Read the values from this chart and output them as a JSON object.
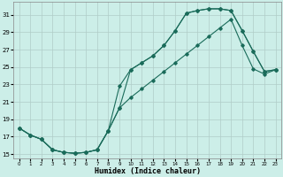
{
  "xlabel": "Humidex (Indice chaleur)",
  "bg_color": "#cceee8",
  "grid_color": "#b0ccc8",
  "line_color": "#1a6b5a",
  "xlim": [
    -0.5,
    23.5
  ],
  "ylim": [
    14.5,
    32.5
  ],
  "xticks": [
    0,
    1,
    2,
    3,
    4,
    5,
    6,
    7,
    8,
    9,
    10,
    11,
    12,
    13,
    14,
    15,
    16,
    17,
    18,
    19,
    20,
    21,
    22,
    23
  ],
  "yticks": [
    15,
    17,
    19,
    21,
    23,
    25,
    27,
    29,
    31
  ],
  "line1_x": [
    0,
    1,
    2,
    3,
    4,
    5,
    6,
    7,
    8,
    9,
    10,
    11,
    12,
    13,
    14,
    15,
    16,
    17,
    18,
    19,
    20,
    21,
    22,
    23
  ],
  "line1_y": [
    18.0,
    17.2,
    16.7,
    15.5,
    15.2,
    15.1,
    15.2,
    15.5,
    17.7,
    20.3,
    24.7,
    25.5,
    26.3,
    27.5,
    29.2,
    31.2,
    31.5,
    31.7,
    31.7,
    31.5,
    29.2,
    26.8,
    24.5,
    24.7
  ],
  "line2_x": [
    0,
    1,
    2,
    3,
    4,
    5,
    6,
    7,
    8,
    9,
    10,
    11,
    12,
    13,
    14,
    15,
    16,
    17,
    18,
    19,
    20,
    21,
    22,
    23
  ],
  "line2_y": [
    18.0,
    17.2,
    16.7,
    15.5,
    15.2,
    15.1,
    15.2,
    15.5,
    17.7,
    22.8,
    24.7,
    25.5,
    26.3,
    27.5,
    29.2,
    31.2,
    31.5,
    31.7,
    31.7,
    31.5,
    29.2,
    26.8,
    24.5,
    24.7
  ],
  "line3_x": [
    0,
    1,
    2,
    3,
    4,
    5,
    6,
    7,
    8,
    9,
    10,
    11,
    12,
    13,
    14,
    15,
    16,
    17,
    18,
    19,
    20,
    21,
    22,
    23
  ],
  "line3_y": [
    18.0,
    17.2,
    16.7,
    15.5,
    15.2,
    15.1,
    15.2,
    15.5,
    17.7,
    20.3,
    21.5,
    22.5,
    23.5,
    24.5,
    25.5,
    26.5,
    27.5,
    28.5,
    29.5,
    30.5,
    27.5,
    24.8,
    24.2,
    24.7
  ]
}
